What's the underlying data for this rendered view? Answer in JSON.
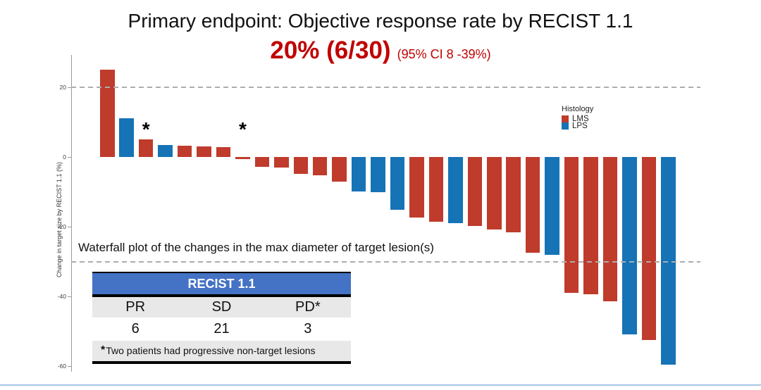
{
  "header": {
    "title": "Primary endpoint: Objective response rate by RECIST 1.1",
    "orr_value": "20% (6/30)",
    "orr_ci": "(95% CI 8 -39%)",
    "orr_color": "#c00000",
    "title_color": "#111111"
  },
  "chart_data": {
    "type": "bar",
    "subtype": "waterfall",
    "ylabel": "Change in target size by RECIST 1.1 (%)",
    "ylim": [
      -62,
      27
    ],
    "yticks": [
      20,
      0,
      -20,
      -40,
      -60
    ],
    "reference_lines": [
      20,
      -30
    ],
    "grid": "off",
    "legend": {
      "title": "Histology",
      "position": "upper-right",
      "items": [
        {
          "label": "LMS",
          "color": "#bf3b2b"
        },
        {
          "label": "LPS",
          "color": "#1573b6"
        }
      ]
    },
    "series_colors": {
      "LMS": "#bf3b2b",
      "LPS": "#1573b6"
    },
    "asterisk_bars": [
      3,
      8
    ],
    "asterisk_symbol": "*",
    "bars": [
      {
        "change_pct": 25.1,
        "histology": "LMS"
      },
      {
        "change_pct": 11.2,
        "histology": "LPS"
      },
      {
        "change_pct": 5.0,
        "histology": "LMS"
      },
      {
        "change_pct": 3.4,
        "histology": "LPS"
      },
      {
        "change_pct": 3.2,
        "histology": "LMS"
      },
      {
        "change_pct": 3.0,
        "histology": "LMS"
      },
      {
        "change_pct": 2.8,
        "histology": "LMS"
      },
      {
        "change_pct": -0.7,
        "histology": "LMS"
      },
      {
        "change_pct": -2.8,
        "histology": "LMS"
      },
      {
        "change_pct": -3.1,
        "histology": "LMS"
      },
      {
        "change_pct": -4.8,
        "histology": "LMS"
      },
      {
        "change_pct": -5.3,
        "histology": "LMS"
      },
      {
        "change_pct": -7.1,
        "histology": "LMS"
      },
      {
        "change_pct": -9.9,
        "histology": "LPS"
      },
      {
        "change_pct": -10.1,
        "histology": "LPS"
      },
      {
        "change_pct": -15.2,
        "histology": "LPS"
      },
      {
        "change_pct": -17.4,
        "histology": "LMS"
      },
      {
        "change_pct": -18.6,
        "histology": "LMS"
      },
      {
        "change_pct": -19.0,
        "histology": "LPS"
      },
      {
        "change_pct": -19.8,
        "histology": "LMS"
      },
      {
        "change_pct": -20.8,
        "histology": "LMS"
      },
      {
        "change_pct": -21.6,
        "histology": "LMS"
      },
      {
        "change_pct": -27.5,
        "histology": "LMS"
      },
      {
        "change_pct": -28.0,
        "histology": "LPS"
      },
      {
        "change_pct": -39.0,
        "histology": "LMS"
      },
      {
        "change_pct": -39.4,
        "histology": "LMS"
      },
      {
        "change_pct": -41.4,
        "histology": "LMS"
      },
      {
        "change_pct": -51.0,
        "histology": "LPS"
      },
      {
        "change_pct": -52.5,
        "histology": "LMS"
      },
      {
        "change_pct": -59.5,
        "histology": "LPS"
      }
    ]
  },
  "caption": "Waterfall plot of the changes in the max diameter of target lesion(s)",
  "table": {
    "header": "RECIST 1.1",
    "header_bg": "#4472c4",
    "row_bg": "#e8e8e8",
    "columns": [
      "PR",
      "SD",
      "PD*"
    ],
    "values": [
      "6",
      "21",
      "3"
    ],
    "footnote_star": "*",
    "footnote": "Two patients had progressive non-target lesions"
  },
  "footer": {
    "accent_color": "#a7c6e4"
  }
}
